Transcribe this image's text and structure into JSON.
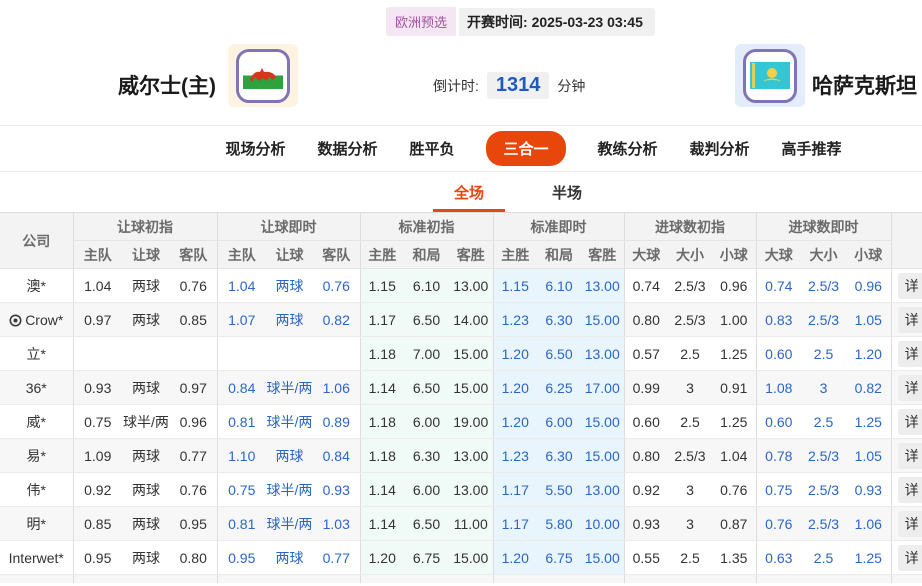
{
  "header": {
    "league_badge": "欧洲预选",
    "kickoff": "开赛时间: 2025-03-23 03:45",
    "home_team": "威尔士(主)",
    "away_team": "哈萨克斯坦",
    "countdown_label": "倒计时:",
    "countdown_value": "1314",
    "countdown_unit": "分钟",
    "home_flag": "wales-flag",
    "away_flag": "kazakhstan-flag"
  },
  "nav": {
    "tabs": [
      "现场分析",
      "数据分析",
      "胜平负",
      "三合一",
      "教练分析",
      "裁判分析",
      "高手推荐"
    ],
    "active": "三合一"
  },
  "subtabs": {
    "tabs": [
      "全场",
      "半场"
    ],
    "active": "全场"
  },
  "odds_table": {
    "company_header": "公司",
    "groups": [
      "让球初指",
      "让球即时",
      "标准初指",
      "标准即时",
      "进球数初指",
      "进球数即时"
    ],
    "subheaders": [
      [
        "主队",
        "让球",
        "客队"
      ],
      [
        "主队",
        "让球",
        "客队"
      ],
      [
        "主胜",
        "和局",
        "客胜"
      ],
      [
        "主胜",
        "和局",
        "客胜"
      ],
      [
        "大球",
        "大小",
        "小球"
      ],
      [
        "大球",
        "大小",
        "小球"
      ]
    ],
    "detail_label": "详",
    "rows": [
      {
        "company": "澳*",
        "icon": false,
        "handicap_initial": [
          "1.04",
          "两球",
          "0.76"
        ],
        "handicap_live": [
          "1.04",
          "两球",
          "0.76"
        ],
        "std_initial": [
          "1.15",
          "6.10",
          "13.00"
        ],
        "std_live": [
          "1.15",
          "6.10",
          "13.00"
        ],
        "goals_initial": [
          "0.74",
          "2.5/3",
          "0.96"
        ],
        "goals_live": [
          "0.74",
          "2.5/3",
          "0.96"
        ]
      },
      {
        "company": "Crow*",
        "icon": true,
        "handicap_initial": [
          "0.97",
          "两球",
          "0.85"
        ],
        "handicap_live": [
          "1.07",
          "两球",
          "0.82"
        ],
        "std_initial": [
          "1.17",
          "6.50",
          "14.00"
        ],
        "std_live": [
          "1.23",
          "6.30",
          "15.00"
        ],
        "goals_initial": [
          "0.80",
          "2.5/3",
          "1.00"
        ],
        "goals_live": [
          "0.83",
          "2.5/3",
          "1.05"
        ]
      },
      {
        "company": "立*",
        "icon": false,
        "handicap_initial": [
          "",
          "",
          ""
        ],
        "handicap_live": [
          "",
          "",
          ""
        ],
        "std_initial": [
          "1.18",
          "7.00",
          "15.00"
        ],
        "std_live": [
          "1.20",
          "6.50",
          "13.00"
        ],
        "goals_initial": [
          "0.57",
          "2.5",
          "1.25"
        ],
        "goals_live": [
          "0.60",
          "2.5",
          "1.20"
        ]
      },
      {
        "company": "36*",
        "icon": false,
        "handicap_initial": [
          "0.93",
          "两球",
          "0.97"
        ],
        "handicap_live": [
          "0.84",
          "球半/两",
          "1.06"
        ],
        "std_initial": [
          "1.14",
          "6.50",
          "15.00"
        ],
        "std_live": [
          "1.20",
          "6.25",
          "17.00"
        ],
        "goals_initial": [
          "0.99",
          "3",
          "0.91"
        ],
        "goals_live": [
          "1.08",
          "3",
          "0.82"
        ]
      },
      {
        "company": "威*",
        "icon": false,
        "handicap_initial": [
          "0.75",
          "球半/两",
          "0.96"
        ],
        "handicap_live": [
          "0.81",
          "球半/两",
          "0.89"
        ],
        "std_initial": [
          "1.18",
          "6.00",
          "19.00"
        ],
        "std_live": [
          "1.20",
          "6.00",
          "15.00"
        ],
        "goals_initial": [
          "0.60",
          "2.5",
          "1.25"
        ],
        "goals_live": [
          "0.60",
          "2.5",
          "1.25"
        ]
      },
      {
        "company": "易*",
        "icon": false,
        "handicap_initial": [
          "1.09",
          "两球",
          "0.77"
        ],
        "handicap_live": [
          "1.10",
          "两球",
          "0.84"
        ],
        "std_initial": [
          "1.18",
          "6.30",
          "13.00"
        ],
        "std_live": [
          "1.23",
          "6.30",
          "15.00"
        ],
        "goals_initial": [
          "0.80",
          "2.5/3",
          "1.04"
        ],
        "goals_live": [
          "0.78",
          "2.5/3",
          "1.05"
        ]
      },
      {
        "company": "伟*",
        "icon": false,
        "handicap_initial": [
          "0.92",
          "两球",
          "0.76"
        ],
        "handicap_live": [
          "0.75",
          "球半/两",
          "0.93"
        ],
        "std_initial": [
          "1.14",
          "6.00",
          "13.00"
        ],
        "std_live": [
          "1.17",
          "5.50",
          "13.00"
        ],
        "goals_initial": [
          "0.92",
          "3",
          "0.76"
        ],
        "goals_live": [
          "0.75",
          "2.5/3",
          "0.93"
        ]
      },
      {
        "company": "明*",
        "icon": false,
        "handicap_initial": [
          "0.85",
          "两球",
          "0.95"
        ],
        "handicap_live": [
          "0.81",
          "球半/两",
          "1.03"
        ],
        "std_initial": [
          "1.14",
          "6.50",
          "11.00"
        ],
        "std_live": [
          "1.17",
          "5.80",
          "10.00"
        ],
        "goals_initial": [
          "0.93",
          "3",
          "0.87"
        ],
        "goals_live": [
          "0.76",
          "2.5/3",
          "1.06"
        ]
      },
      {
        "company": "Interwet*",
        "icon": false,
        "handicap_initial": [
          "0.95",
          "两球",
          "0.80"
        ],
        "handicap_live": [
          "0.95",
          "两球",
          "0.77"
        ],
        "std_initial": [
          "1.20",
          "6.75",
          "15.00"
        ],
        "std_live": [
          "1.20",
          "6.75",
          "15.00"
        ],
        "goals_initial": [
          "0.55",
          "2.5",
          "1.35"
        ],
        "goals_live": [
          "0.63",
          "2.5",
          "1.25"
        ]
      }
    ]
  },
  "colors": {
    "accent_orange": "#e8470c",
    "odds_blue": "#2b66c4",
    "countdown_blue": "#1d5bbf",
    "badge_purple": "#a0529f",
    "std_initial_bg": "#f0faf6",
    "std_live_bg": "#e9f5fd",
    "flag_border_purple": "#7f74b5"
  }
}
